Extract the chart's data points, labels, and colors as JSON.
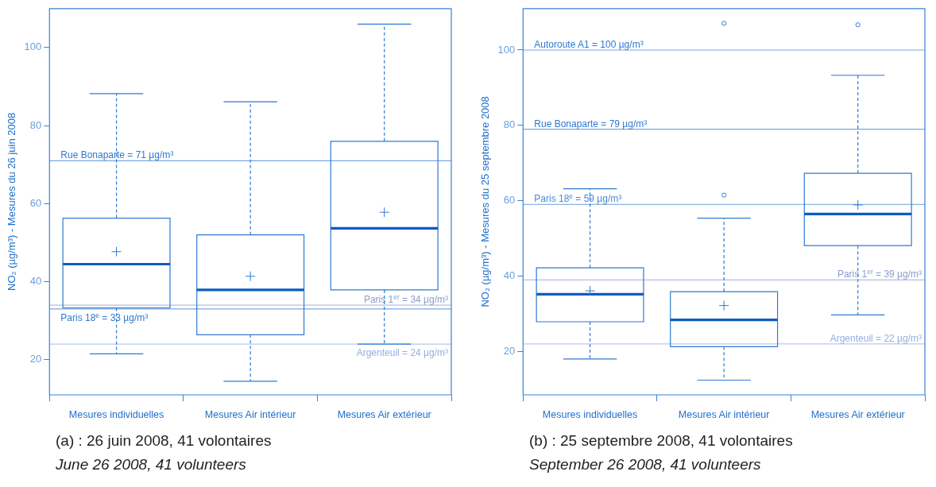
{
  "chart_data": [
    {
      "type": "box",
      "ylabel": "NO₂ (µg/m³) - Mesures du 26 juin 2008",
      "categories": [
        "Mesures individuelles",
        "Mesures Air intérieur",
        "Mesures Air extérieur"
      ],
      "series": [
        {
          "color": "#2f7ad2",
          "boxes": [
            {
              "low": 21.5,
              "q1": 33.3,
              "median": 44.5,
              "q3": 56.3,
              "high": 88.2,
              "mean": 47.7
            },
            {
              "low": 14.5,
              "q1": 26.4,
              "median": 37.9,
              "q3": 52,
              "high": 86.1,
              "mean": 41.4
            },
            {
              "low": 24,
              "q1": 37.9,
              "median": 53.7,
              "q3": 76,
              "high": 106,
              "mean": 57.8
            }
          ]
        }
      ],
      "ylim": [
        11,
        110
      ],
      "yticks": [
        20,
        40,
        60,
        80,
        100
      ],
      "grid": false,
      "legend": false,
      "ref_lines": [
        {
          "axis": "y",
          "value": 71,
          "label": "Rue Bonaparte = 71 µg/m³",
          "color": "#2f78d0"
        },
        {
          "axis": "y",
          "value": 34,
          "label": "Paris 1$^{er}$ = 34 µg/m³",
          "color": "#8b9ccf"
        },
        {
          "axis": "y",
          "value": 33,
          "label": "Paris 18$^{e}$ = 33 µg/m³",
          "color": "#2f78d0"
        },
        {
          "axis": "y",
          "value": 24,
          "label": "Argenteuil = 24 µg/m³",
          "color": "#93aee0"
        }
      ],
      "annotations": [
        "(a) : 26 juin 2008, 41 volontaires",
        "June 26 2008, 41 volunteers"
      ]
    },
    {
      "type": "box",
      "ylabel": "NO₂ (µg/m³) - Mesures du 25 septembre 2008",
      "categories": [
        "Mesures individuelles",
        "Mesures Air intérieur",
        "Mesures Air extérieur"
      ],
      "series": [
        {
          "color": "#2f7ad2",
          "boxes": [
            {
              "low": 18,
              "q1": 27.9,
              "median": 35.2,
              "q3": 42.2,
              "high": 63.2,
              "mean": 36.1
            },
            {
              "low": 12.4,
              "q1": 21.3,
              "median": 28.4,
              "q3": 35.9,
              "high": 55.4,
              "mean": 32.2,
              "outliers": [
                61.5,
                107.1
              ]
            },
            {
              "low": 29.7,
              "q1": 48.1,
              "median": 56.5,
              "q3": 67.3,
              "high": 93.3,
              "mean": 58.9,
              "outliers": [
                106.7
              ]
            }
          ]
        }
      ],
      "ylim": [
        8.5,
        111
      ],
      "yticks": [
        20,
        40,
        60,
        80,
        100
      ],
      "grid": false,
      "legend": false,
      "ref_lines": [
        {
          "axis": "y",
          "value": 100,
          "label": "Autoroute A1 = 100 µg/m³",
          "color": "#2f78d0"
        },
        {
          "axis": "y",
          "value": 79,
          "label": "Rue Bonaparte = 79 µg/m³",
          "color": "#2f78d0"
        },
        {
          "axis": "y",
          "value": 59,
          "label": "Paris 18$^{e}$ = 59 µg/m³",
          "color": "#4b8ad6"
        },
        {
          "axis": "y",
          "value": 39,
          "label": "Paris 1$^{er}$ = 39 µg/m³",
          "color": "#8b9ccf"
        },
        {
          "axis": "y",
          "value": 22,
          "label": "Argenteuil = 22 µg/m³",
          "color": "#93aee0"
        }
      ],
      "annotations": [
        "(b) : 25 septembre 2008, 41 volontaires",
        "September 26 2008, 41 volunteers"
      ]
    }
  ]
}
